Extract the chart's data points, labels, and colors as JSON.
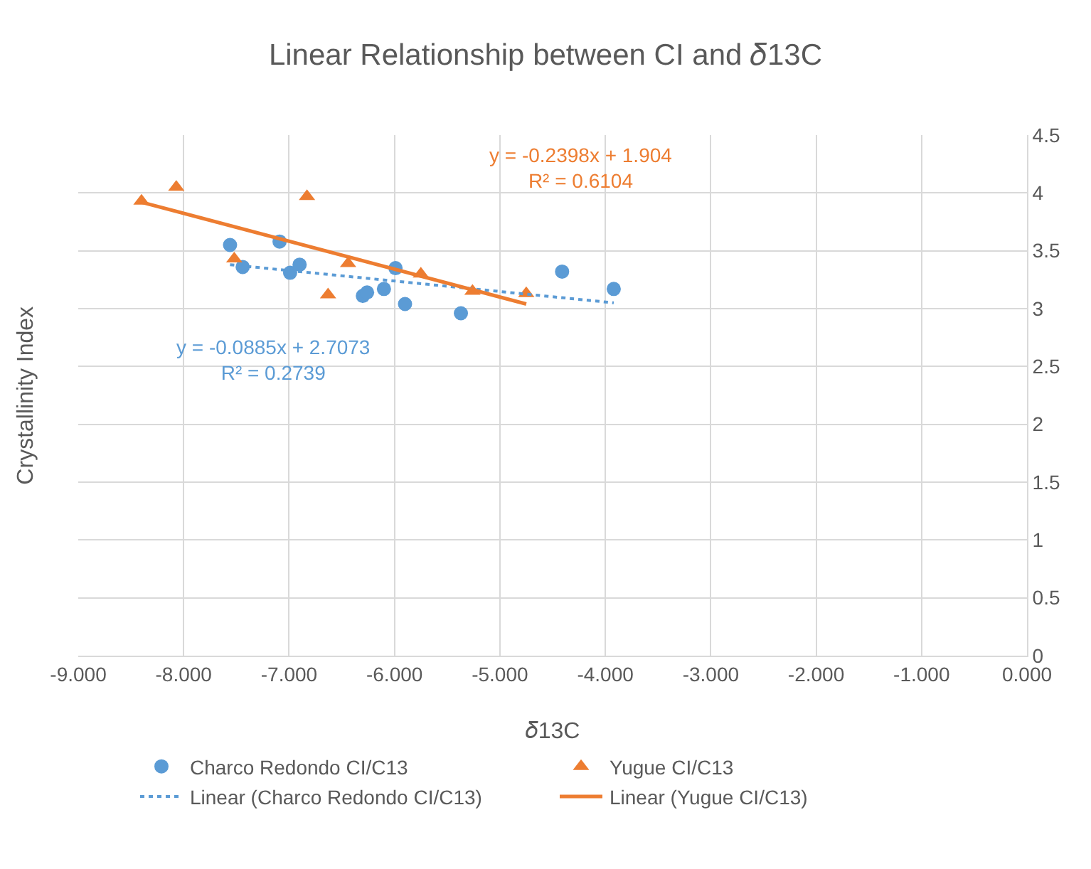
{
  "chart_data": {
    "type": "scatter",
    "title": "Linear Relationship between CI and 𝛿13C",
    "xlabel": "𝛿13C",
    "ylabel": "Crystallinity Index",
    "xlim": [
      -9,
      0
    ],
    "xticks": [
      {
        "value": -9,
        "label": "-9.000"
      },
      {
        "value": -8,
        "label": "-8.000"
      },
      {
        "value": -7,
        "label": "-7.000"
      },
      {
        "value": -6,
        "label": "-6.000"
      },
      {
        "value": -5,
        "label": "-5.000"
      },
      {
        "value": -4,
        "label": "-4.000"
      },
      {
        "value": -3,
        "label": "-3.000"
      },
      {
        "value": -2,
        "label": "-2.000"
      },
      {
        "value": -1,
        "label": "-1.000"
      },
      {
        "value": 0,
        "label": "0.000"
      }
    ],
    "ylim": [
      0,
      4.5
    ],
    "yticks": [
      0,
      0.5,
      1,
      1.5,
      2,
      2.5,
      3,
      3.5,
      4,
      4.5
    ],
    "grid": true,
    "legend": "bottom",
    "series": [
      {
        "name": "Charco Redondo CI/C13",
        "type": "scatter",
        "marker": "circle",
        "color": "#5b9bd5",
        "x": [
          -7.56,
          -7.44,
          -7.09,
          -6.99,
          -6.9,
          -6.3,
          -6.26,
          -6.1,
          -5.99,
          -5.9,
          -5.37,
          -4.41,
          -3.92
        ],
        "values": [
          3.55,
          3.36,
          3.58,
          3.31,
          3.38,
          3.11,
          3.14,
          3.17,
          3.35,
          3.04,
          2.96,
          3.32,
          3.17
        ]
      },
      {
        "name": "Yugue CI/C13",
        "type": "scatter",
        "marker": "triangle",
        "color": "#ed7d31",
        "x": [
          -8.4,
          -8.07,
          -7.52,
          -6.83,
          -6.63,
          -6.44,
          -5.75,
          -5.26,
          -4.75
        ],
        "values": [
          3.93,
          4.05,
          3.43,
          3.97,
          3.12,
          3.39,
          3.3,
          3.15,
          3.13
        ]
      },
      {
        "name": "Linear (Charco Redondo CI/C13)",
        "type": "line",
        "line_style": "dotted",
        "color": "#5b9bd5",
        "x": [
          -7.56,
          -3.92
        ],
        "values": [
          3.38,
          3.05
        ]
      },
      {
        "name": "Linear (Yugue CI/C13)",
        "type": "line",
        "line_style": "solid",
        "color": "#ed7d31",
        "x": [
          -8.4,
          -4.75
        ],
        "values": [
          3.92,
          3.04
        ]
      }
    ],
    "annotations": [
      "y = -0.2398x + 1.904\nR² = 0.6104",
      "y = -0.0885x + 2.7073\nR² = 0.2739"
    ]
  }
}
